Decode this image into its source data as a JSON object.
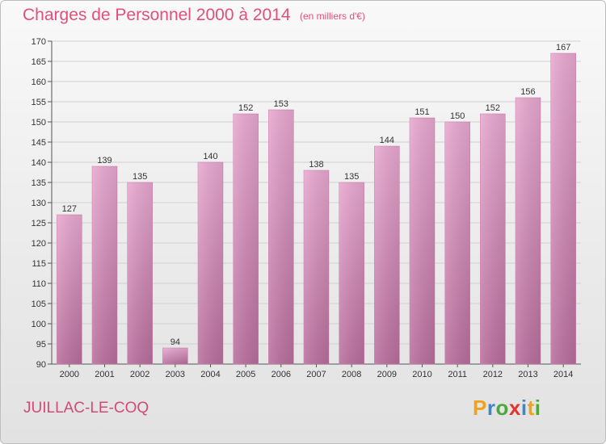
{
  "header": {
    "title": "Charges de Personnel 2000 à 2014",
    "subtitle": "(en milliers d'€)"
  },
  "footer": {
    "commune": "JUILLAC-LE-COQ",
    "logo": {
      "letters": [
        "P",
        "r",
        "o",
        "x",
        "i",
        "t",
        "i"
      ],
      "colors": [
        "#f0a21c",
        "#3b87c8",
        "#4aa83c",
        "#e3342f",
        "#3b87c8",
        "#f0a21c",
        "#4aa83c"
      ]
    }
  },
  "chart_data": {
    "type": "bar",
    "title": "Charges de Personnel 2000 à 2014",
    "subtitle": "(en milliers d'€)",
    "categories": [
      "2000",
      "2001",
      "2002",
      "2003",
      "2004",
      "2005",
      "2006",
      "2007",
      "2008",
      "2009",
      "2010",
      "2011",
      "2012",
      "2013",
      "2014"
    ],
    "values": [
      127,
      139,
      135,
      94,
      140,
      152,
      153,
      138,
      135,
      144,
      151,
      150,
      152,
      156,
      167
    ],
    "ylim": [
      90,
      170
    ],
    "yticks": [
      90,
      95,
      100,
      105,
      110,
      115,
      120,
      125,
      130,
      135,
      140,
      145,
      150,
      155,
      160,
      165,
      170
    ],
    "grid": true,
    "bar_color": "#e0a0c8"
  }
}
